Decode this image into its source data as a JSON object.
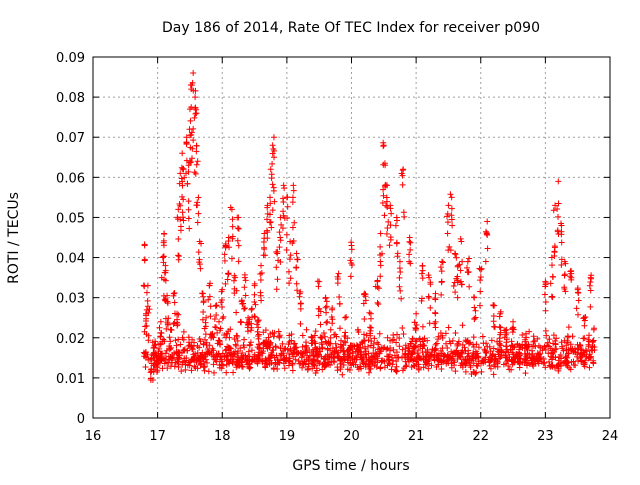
{
  "chart_data": {
    "type": "scatter",
    "title": "Day 186 of 2014, Rate Of TEC Index for receiver p090",
    "xlabel": "GPS time / hours",
    "ylabel": "ROTI / TECUs",
    "xlim": [
      16,
      24
    ],
    "ylim": [
      0,
      0.09
    ],
    "x_ticks": [
      16,
      17,
      18,
      19,
      20,
      21,
      22,
      23,
      24
    ],
    "x_tick_labels": [
      "16",
      "17",
      "18",
      "19",
      "20",
      "21",
      "22",
      "23",
      "24"
    ],
    "y_ticks": [
      0,
      0.01,
      0.02,
      0.03,
      0.04,
      0.05,
      0.06,
      0.07,
      0.08,
      0.09
    ],
    "y_tick_labels": [
      "0",
      "0.01",
      "0.02",
      "0.03",
      "0.04",
      "0.05",
      "0.06",
      "0.07",
      "0.08",
      "0.09"
    ],
    "grid": true,
    "marker": "+",
    "marker_color": "#ff0000",
    "x_range_of_data": [
      16.78,
      23.75
    ],
    "series": [
      {
        "name": "ROTI",
        "x": [
          16.8,
          16.82,
          16.85,
          16.9,
          16.95,
          17.0,
          17.05,
          17.08,
          17.1,
          17.12,
          17.15,
          17.2,
          17.25,
          17.3,
          17.32,
          17.35,
          17.38,
          17.4,
          17.45,
          17.48,
          17.5,
          17.52,
          17.55,
          17.58,
          17.6,
          17.62,
          17.65,
          17.7,
          17.75,
          17.8,
          17.85,
          17.9,
          17.95,
          18.0,
          18.05,
          18.1,
          18.15,
          18.2,
          18.25,
          18.3,
          18.35,
          18.4,
          18.45,
          18.5,
          18.55,
          18.6,
          18.65,
          18.7,
          18.75,
          18.78,
          18.8,
          18.85,
          18.9,
          18.95,
          19.0,
          19.05,
          19.1,
          19.15,
          19.2,
          19.3,
          19.4,
          19.5,
          19.6,
          19.7,
          19.8,
          19.9,
          20.0,
          20.1,
          20.2,
          20.3,
          20.4,
          20.45,
          20.5,
          20.52,
          20.55,
          20.6,
          20.7,
          20.75,
          20.8,
          20.9,
          21.0,
          21.1,
          21.2,
          21.3,
          21.4,
          21.5,
          21.55,
          21.6,
          21.65,
          21.7,
          21.8,
          21.9,
          22.0,
          22.1,
          22.2,
          22.3,
          22.4,
          22.5,
          22.6,
          22.7,
          22.8,
          22.9,
          23.0,
          23.1,
          23.15,
          23.2,
          23.25,
          23.3,
          23.4,
          23.5,
          23.6,
          23.7,
          23.75
        ],
        "y": [
          0.043,
          0.026,
          0.033,
          0.012,
          0.018,
          0.015,
          0.024,
          0.04,
          0.046,
          0.038,
          0.029,
          0.022,
          0.031,
          0.026,
          0.052,
          0.061,
          0.066,
          0.062,
          0.07,
          0.063,
          0.077,
          0.082,
          0.086,
          0.08,
          0.076,
          0.064,
          0.044,
          0.031,
          0.025,
          0.033,
          0.021,
          0.028,
          0.024,
          0.032,
          0.043,
          0.045,
          0.052,
          0.035,
          0.05,
          0.029,
          0.035,
          0.025,
          0.027,
          0.033,
          0.024,
          0.038,
          0.046,
          0.053,
          0.062,
          0.068,
          0.07,
          0.041,
          0.05,
          0.058,
          0.055,
          0.044,
          0.058,
          0.041,
          0.031,
          0.018,
          0.02,
          0.034,
          0.03,
          0.027,
          0.036,
          0.025,
          0.043,
          0.022,
          0.031,
          0.026,
          0.034,
          0.046,
          0.068,
          0.063,
          0.058,
          0.053,
          0.05,
          0.039,
          0.062,
          0.045,
          0.026,
          0.038,
          0.035,
          0.031,
          0.039,
          0.053,
          0.055,
          0.041,
          0.038,
          0.044,
          0.039,
          0.03,
          0.037,
          0.049,
          0.028,
          0.026,
          0.022,
          0.024,
          0.018,
          0.021,
          0.016,
          0.018,
          0.034,
          0.04,
          0.053,
          0.059,
          0.048,
          0.039,
          0.036,
          0.032,
          0.025,
          0.035,
          0.022
        ]
      }
    ]
  }
}
